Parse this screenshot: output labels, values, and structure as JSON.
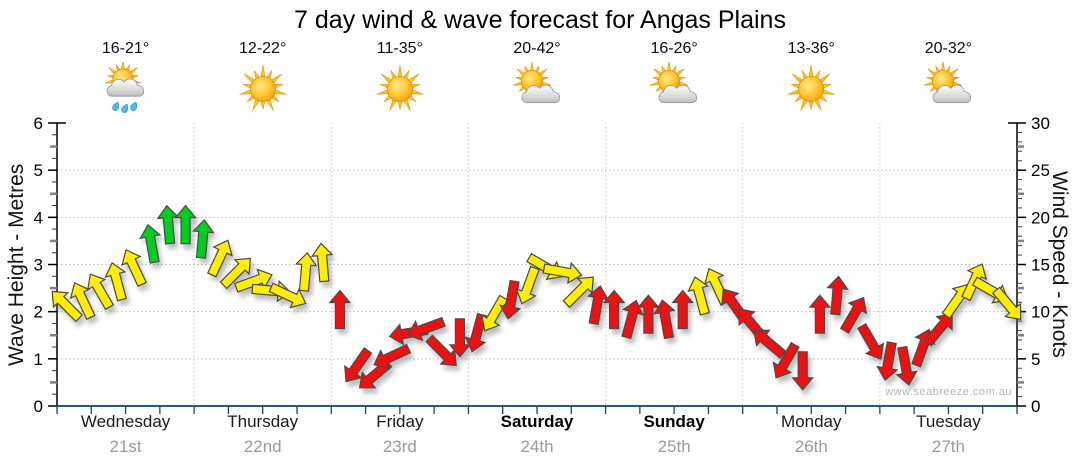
{
  "title": "7 day wind & wave forecast for Angas Plains",
  "watermark": "www.seabreeze.com.au",
  "days": [
    {
      "name": "Wednesday",
      "date": "21st",
      "temp": "16-21°",
      "icon": "sun-cloud-rain",
      "bold": false
    },
    {
      "name": "Thursday",
      "date": "22nd",
      "temp": "12-22°",
      "icon": "sun",
      "bold": false
    },
    {
      "name": "Friday",
      "date": "23rd",
      "temp": "11-35°",
      "icon": "sun",
      "bold": false
    },
    {
      "name": "Saturday",
      "date": "24th",
      "temp": "20-42°",
      "icon": "sun-cloud",
      "bold": true
    },
    {
      "name": "Sunday",
      "date": "25th",
      "temp": "16-26°",
      "icon": "sun-cloud",
      "bold": true
    },
    {
      "name": "Monday",
      "date": "26th",
      "temp": "13-36°",
      "icon": "sun",
      "bold": false
    },
    {
      "name": "Tuesday",
      "date": "27th",
      "temp": "20-32°",
      "icon": "sun-cloud",
      "bold": false
    }
  ],
  "chart_data": {
    "type": "scatter",
    "subtype": "wind-arrow-timeseries",
    "title": "7 day wind & wave forecast for Angas Plains",
    "x": {
      "categories": [
        "Wednesday 21st",
        "Thursday 22nd",
        "Friday 23rd",
        "Saturday 24th",
        "Sunday 25th",
        "Monday 26th",
        "Tuesday 27th"
      ],
      "points_per_day": 8,
      "minor_ticks_per_day": 4
    },
    "y_left": {
      "label": "Wave Height - Metres",
      "range": [
        0,
        6
      ],
      "ticks": [
        0,
        1,
        2,
        3,
        4,
        5,
        6
      ]
    },
    "y_right": {
      "label": "Wind Speed - Knots",
      "range": [
        0,
        30
      ],
      "ticks": [
        0,
        5,
        10,
        15,
        20,
        25,
        30
      ]
    },
    "grid": {
      "horizontal_dotted_at_metres": [
        1,
        2,
        3,
        4,
        5
      ],
      "vertical_dotted_at_day_boundaries": true
    },
    "colors": {
      "y": "#FFEE00",
      "g": "#00CC22",
      "r": "#EE1111",
      "outline": "#4A4A4A",
      "axis_bottom": "#1F5C8B",
      "gridline": "#BBBBBB"
    },
    "arrows_note": "each point = [wind_speed_knots, arrow_direction_deg (0=up, clockwise), color_key]; 8 points/day x 7 days",
    "arrows": [
      [
        12,
        -45,
        "y"
      ],
      [
        12.5,
        -25,
        "y"
      ],
      [
        13.5,
        -30,
        "y"
      ],
      [
        14.5,
        -15,
        "y"
      ],
      [
        16,
        -25,
        "y"
      ],
      [
        18.5,
        -10,
        "g"
      ],
      [
        20.5,
        -5,
        "g"
      ],
      [
        20.5,
        0,
        "g"
      ],
      [
        19,
        5,
        "g"
      ],
      [
        17,
        25,
        "y"
      ],
      [
        15.5,
        45,
        "y"
      ],
      [
        14.5,
        70,
        "y"
      ],
      [
        13.5,
        95,
        "y"
      ],
      [
        13,
        115,
        "y"
      ],
      [
        15.5,
        5,
        "y"
      ],
      [
        16.5,
        -5,
        "y"
      ],
      [
        11.5,
        0,
        "r"
      ],
      [
        5.5,
        215,
        "r"
      ],
      [
        4.5,
        230,
        "r"
      ],
      [
        6.5,
        245,
        "r"
      ],
      [
        9,
        260,
        "r"
      ],
      [
        9.5,
        250,
        "r"
      ],
      [
        7,
        135,
        "r"
      ],
      [
        8.5,
        180,
        "r"
      ],
      [
        9,
        195,
        "r"
      ],
      [
        11,
        210,
        "y"
      ],
      [
        12.5,
        190,
        "r"
      ],
      [
        14,
        200,
        "y"
      ],
      [
        16,
        120,
        "y"
      ],
      [
        15.5,
        100,
        "y"
      ],
      [
        13.5,
        45,
        "y"
      ],
      [
        12,
        10,
        "r"
      ],
      [
        11.5,
        0,
        "r"
      ],
      [
        10.5,
        15,
        "r"
      ],
      [
        11,
        0,
        "r"
      ],
      [
        10.5,
        -10,
        "r"
      ],
      [
        11.5,
        0,
        "r"
      ],
      [
        13,
        -15,
        "y"
      ],
      [
        14,
        -25,
        "y"
      ],
      [
        12,
        -35,
        "r"
      ],
      [
        10,
        -40,
        "r"
      ],
      [
        8,
        -50,
        "r"
      ],
      [
        6,
        210,
        "r"
      ],
      [
        5,
        180,
        "r"
      ],
      [
        11,
        0,
        "r"
      ],
      [
        13,
        5,
        "r"
      ],
      [
        11,
        30,
        "r"
      ],
      [
        8,
        150,
        "r"
      ],
      [
        6,
        190,
        "r"
      ],
      [
        5.5,
        170,
        "r"
      ],
      [
        7.5,
        20,
        "r"
      ],
      [
        9.5,
        40,
        "r"
      ],
      [
        12.5,
        35,
        "y"
      ],
      [
        14.5,
        25,
        "y"
      ],
      [
        13.5,
        120,
        "y"
      ],
      [
        12,
        140,
        "y"
      ]
    ]
  }
}
